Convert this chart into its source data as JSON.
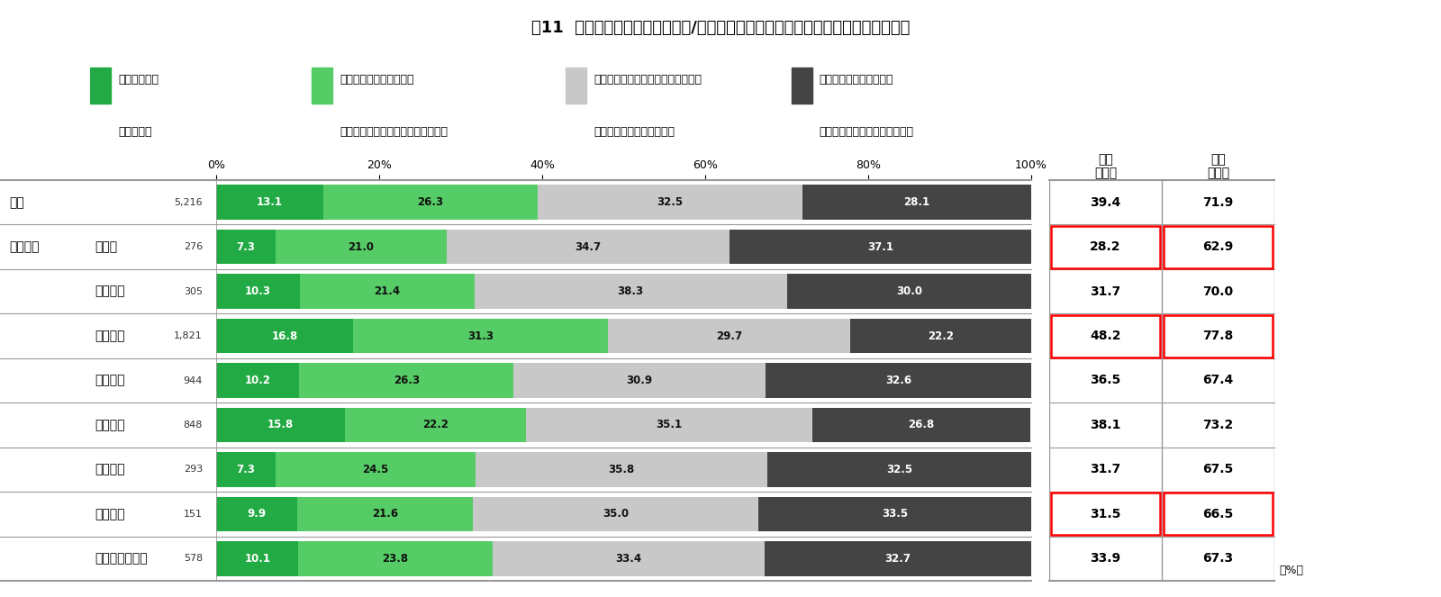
{
  "title": "図11  エリア別、ダイバーシティ/ダイバーシティ＆インクルージョンに対する認知",
  "rows": [
    {
      "label": "全体",
      "sublabel": "",
      "n": "5,216",
      "v1": 13.1,
      "v2": 26.3,
      "v3": 32.5,
      "v4": 28.1,
      "c1": "39.4",
      "c2": "71.9",
      "box": false
    },
    {
      "label": "エリア別",
      "sublabel": "北海道",
      "n": "276",
      "v1": 7.3,
      "v2": 21.0,
      "v3": 34.7,
      "v4": 37.1,
      "c1": "28.2",
      "c2": "62.9",
      "box": true
    },
    {
      "label": "",
      "sublabel": "東北地方",
      "n": "305",
      "v1": 10.3,
      "v2": 21.4,
      "v3": 38.3,
      "v4": 30.0,
      "c1": "31.7",
      "c2": "70.0",
      "box": false
    },
    {
      "label": "",
      "sublabel": "関東地方",
      "n": "1,821",
      "v1": 16.8,
      "v2": 31.3,
      "v3": 29.7,
      "v4": 22.2,
      "c1": "48.2",
      "c2": "77.8",
      "box": true
    },
    {
      "label": "",
      "sublabel": "中部地方",
      "n": "944",
      "v1": 10.2,
      "v2": 26.3,
      "v3": 30.9,
      "v4": 32.6,
      "c1": "36.5",
      "c2": "67.4",
      "box": false
    },
    {
      "label": "",
      "sublabel": "近畿地方",
      "n": "848",
      "v1": 15.8,
      "v2": 22.2,
      "v3": 35.1,
      "v4": 26.8,
      "c1": "38.1",
      "c2": "73.2",
      "box": false
    },
    {
      "label": "",
      "sublabel": "中国地方",
      "n": "293",
      "v1": 7.3,
      "v2": 24.5,
      "v3": 35.8,
      "v4": 32.5,
      "c1": "31.7",
      "c2": "67.5",
      "box": false
    },
    {
      "label": "",
      "sublabel": "四国地方",
      "n": "151",
      "v1": 9.9,
      "v2": 21.6,
      "v3": 35.0,
      "v4": 33.5,
      "c1": "31.5",
      "c2": "66.5",
      "box": true
    },
    {
      "label": "",
      "sublabel": "九州・沖縄地方",
      "n": "578",
      "v1": 10.1,
      "v2": 23.8,
      "v3": 33.4,
      "v4": 32.7,
      "c1": "33.9",
      "c2": "67.3",
      "box": false
    }
  ],
  "bar_colors": [
    "#22aa44",
    "#55cc66",
    "#c8c8c8",
    "#444444"
  ],
  "legend": [
    {
      "color": "#22aa44",
      "line1": "意味や定義を",
      "line2": "知っている"
    },
    {
      "color": "#55cc66",
      "line1": "正しいか確認はないが、",
      "line2": "意味や定義はなんとなく知っている"
    },
    {
      "color": "#c8c8c8",
      "line1": "言葉や名前を聞いたことはあるが、",
      "line2": "意味や定義までは知らない"
    },
    {
      "color": "#444444",
      "line1": "意味や定義はわからず、",
      "line2": "言葉や名前を聞いたこともない"
    }
  ],
  "bg_color": "#ffffff",
  "border_color": "#999999",
  "text_color": "#000000"
}
